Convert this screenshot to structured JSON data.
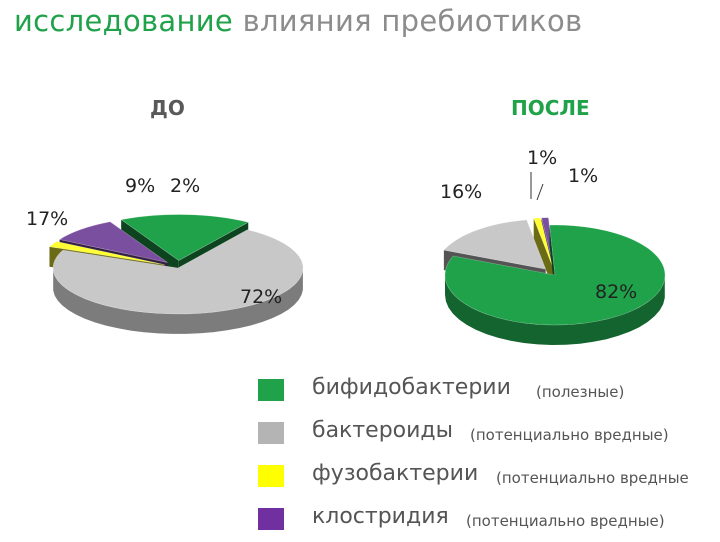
{
  "title": {
    "highlight": "исследование",
    "rest": "влияния пребиотиков"
  },
  "chart_data": [
    {
      "type": "pie",
      "title": "ДО",
      "categories": [
        "бифидобактерии",
        "бактероиды",
        "фузобактерии",
        "клостридия"
      ],
      "values": [
        17,
        72,
        2,
        9
      ],
      "labels": [
        "17%",
        "72%",
        "2%",
        "9%"
      ]
    },
    {
      "type": "pie",
      "title": "ПОСЛЕ",
      "categories": [
        "бифидобактерии",
        "бактероиды",
        "фузобактерии",
        "клостридия"
      ],
      "values": [
        82,
        16,
        1,
        1
      ],
      "labels": [
        "82%",
        "16%",
        "1%",
        "1%"
      ]
    }
  ],
  "colors": {
    "title_accent": "#1fa24a",
    "title_text": "#8c8c8c",
    "subtitle": "#595959",
    "бифидобактерии": "#1fa24a",
    "бактероиды": "#c8c8c8",
    "фузобактерии": "#ffff33",
    "клостридия": "#7b4fa0"
  },
  "legend": [
    {
      "name": "бифидобактерии",
      "note": "(полезные)",
      "color": "#1fa24a"
    },
    {
      "name": "бактероиды",
      "note": "(потенциально вредные)",
      "color": "#b4b4b4"
    },
    {
      "name": "фузобактерии",
      "note": "(потенциально вредные",
      "color": "#ffff00"
    },
    {
      "name": "клостридия",
      "note": "(потенциально вредные)",
      "color": "#7030a0"
    }
  ]
}
